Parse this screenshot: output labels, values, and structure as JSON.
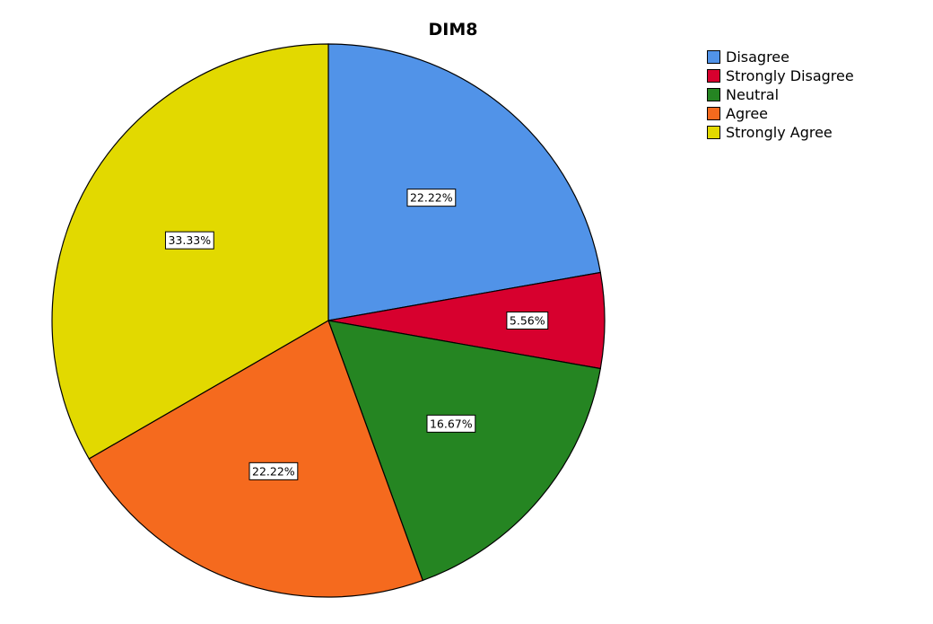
{
  "chart_data": {
    "type": "pie",
    "title": "DIM8",
    "legend_position": "top-right",
    "slices": [
      {
        "label": "Disagree",
        "value": 22.22,
        "value_label": "22.22%",
        "color": "#5193E8"
      },
      {
        "label": "Strongly Disagree",
        "value": 5.56,
        "value_label": "5.56%",
        "color": "#D7002E"
      },
      {
        "label": "Neutral",
        "value": 16.67,
        "value_label": "16.67%",
        "color": "#258522"
      },
      {
        "label": "Agree",
        "value": 22.22,
        "value_label": "22.22%",
        "color": "#F56A1E"
      },
      {
        "label": "Strongly Agree",
        "value": 33.33,
        "value_label": "33.33%",
        "color": "#E2D900"
      }
    ]
  }
}
